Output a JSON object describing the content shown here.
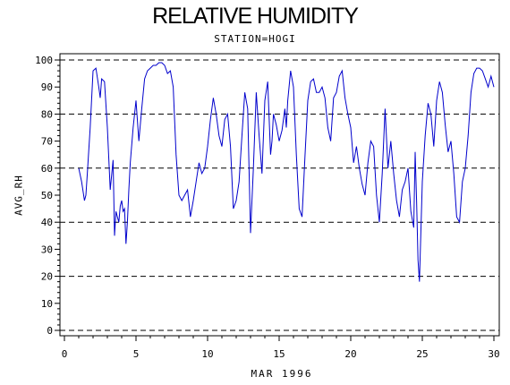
{
  "chart_data": {
    "type": "line",
    "title": "RELATIVE HUMIDITY",
    "subtitle": "STATION=HOGI",
    "xlabel": "MAR 1996",
    "ylabel": "AVG_RH",
    "xlim": [
      0,
      30
    ],
    "ylim": [
      0,
      100
    ],
    "xticks": [
      "0",
      "5",
      "10",
      "15",
      "20",
      "25",
      "30"
    ],
    "yticks": [
      "0",
      "10",
      "20",
      "30",
      "40",
      "50",
      "60",
      "70",
      "80",
      "90",
      "100"
    ],
    "grid_y_dashed": [
      0,
      20,
      40,
      60,
      80,
      100
    ],
    "line_color": "#0000cc",
    "series": [
      {
        "x": [
          1.0,
          1.2,
          1.4,
          1.5,
          1.6,
          1.8,
          2.0,
          2.2,
          2.4,
          2.5,
          2.6,
          2.8,
          3.0,
          3.2,
          3.4,
          3.5,
          3.6,
          3.7,
          3.8,
          3.9,
          4.0,
          4.1,
          4.2,
          4.3,
          4.4,
          4.5,
          4.6,
          4.8,
          5.0,
          5.2,
          5.4,
          5.6,
          5.8,
          6.0,
          6.2,
          6.4,
          6.6,
          6.8,
          7.0,
          7.2,
          7.4,
          7.6,
          7.8,
          8.0,
          8.2,
          8.4,
          8.6,
          8.8,
          9.0,
          9.2,
          9.4,
          9.6,
          9.8,
          10.0,
          10.2,
          10.4,
          10.6,
          10.8,
          11.0,
          11.2,
          11.4,
          11.6,
          11.8,
          12.0,
          12.2,
          12.4,
          12.6,
          12.8,
          13.0,
          13.2,
          13.4,
          13.6,
          13.8,
          14.0,
          14.2,
          14.4,
          14.5,
          14.6,
          14.8,
          15.0,
          15.2,
          15.4,
          15.5,
          15.6,
          15.8,
          16.0,
          16.2,
          16.4,
          16.6,
          16.8,
          17.0,
          17.2,
          17.4,
          17.6,
          17.8,
          18.0,
          18.2,
          18.4,
          18.6,
          18.8,
          19.0,
          19.2,
          19.4,
          19.6,
          19.8,
          20.0,
          20.2,
          20.4,
          20.6,
          20.8,
          21.0,
          21.2,
          21.4,
          21.6,
          21.8,
          22.0,
          22.2,
          22.4,
          22.6,
          22.8,
          23.0,
          23.2,
          23.4,
          23.6,
          23.8,
          24.0,
          24.2,
          24.4,
          24.5,
          24.6,
          24.7,
          24.8,
          25.0,
          25.2,
          25.4,
          25.6,
          25.8,
          26.0,
          26.2,
          26.4,
          26.6,
          26.8,
          27.0,
          27.2,
          27.4,
          27.6,
          27.8,
          28.0,
          28.2,
          28.4,
          28.6,
          28.8,
          29.0,
          29.2,
          29.4,
          29.6,
          29.8,
          30.0
        ],
        "values": [
          60,
          55,
          48,
          50,
          58,
          75,
          96,
          97,
          90,
          86,
          93,
          92,
          75,
          52,
          63,
          35,
          44,
          42,
          40,
          46,
          48,
          44,
          45,
          32,
          40,
          52,
          62,
          75,
          85,
          70,
          82,
          93,
          96,
          97,
          98,
          98,
          99,
          99,
          98,
          95,
          96,
          90,
          65,
          50,
          48,
          50,
          52,
          42,
          48,
          55,
          62,
          58,
          60,
          68,
          78,
          86,
          80,
          72,
          68,
          78,
          80,
          68,
          45,
          48,
          55,
          72,
          88,
          82,
          36,
          60,
          88,
          72,
          58,
          85,
          92,
          65,
          70,
          80,
          76,
          70,
          74,
          82,
          75,
          85,
          96,
          90,
          65,
          45,
          42,
          64,
          85,
          92,
          93,
          88,
          88,
          90,
          86,
          75,
          70,
          86,
          88,
          94,
          96,
          86,
          80,
          75,
          62,
          68,
          60,
          54,
          50,
          62,
          70,
          68,
          50,
          40,
          58,
          82,
          60,
          70,
          58,
          48,
          42,
          52,
          55,
          60,
          44,
          38,
          66,
          48,
          26,
          18,
          55,
          72,
          84,
          80,
          68,
          85,
          92,
          88,
          76,
          66,
          70,
          58,
          42,
          40,
          55,
          60,
          72,
          88,
          95,
          97,
          97,
          96,
          93,
          90,
          94,
          90
        ]
      }
    ]
  }
}
